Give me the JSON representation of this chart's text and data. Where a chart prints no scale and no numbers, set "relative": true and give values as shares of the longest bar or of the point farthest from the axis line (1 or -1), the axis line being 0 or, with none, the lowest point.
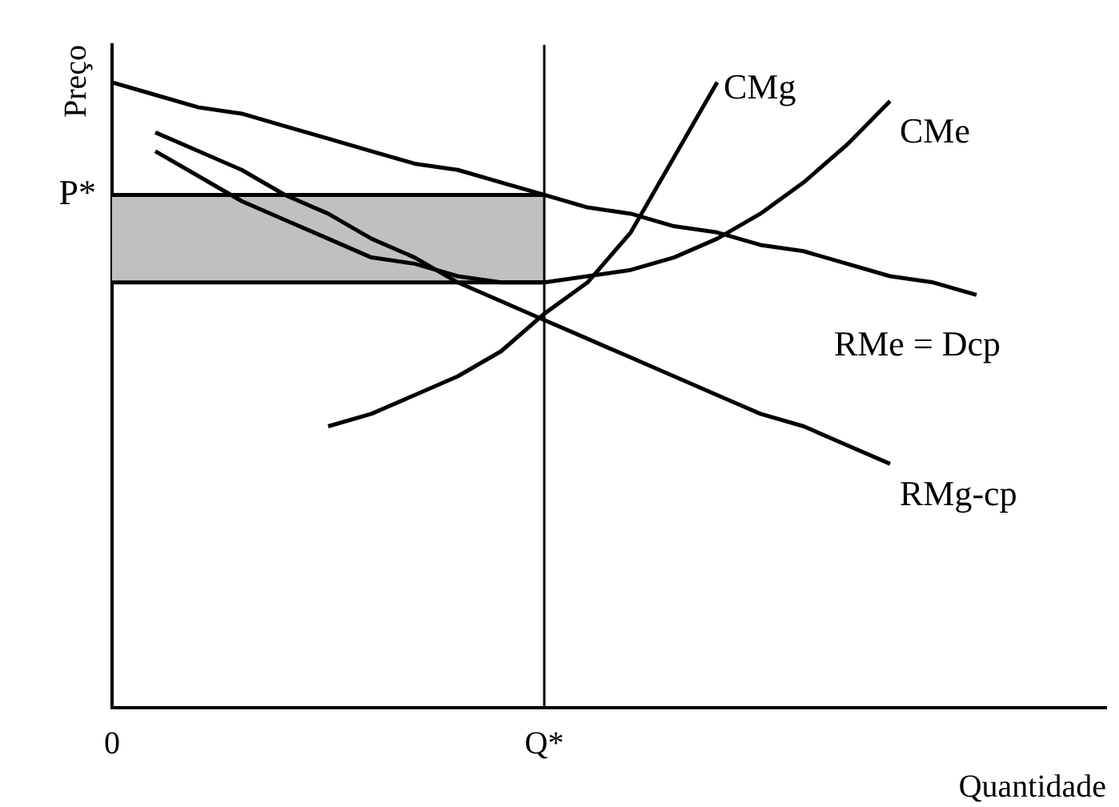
{
  "chart_data": {
    "type": "line",
    "xlabel": "Quantidade",
    "ylabel": "Preço",
    "relative": true,
    "tick_labels": "x",
    "legend": false,
    "marker": "none",
    "line_style": "solid",
    "categories": [
      "0",
      null,
      null,
      null,
      null,
      null,
      null,
      null,
      null,
      null,
      "Q*",
      null,
      null,
      null,
      null,
      null,
      null,
      null,
      null,
      null,
      null,
      null,
      null,
      null
    ],
    "annotations": [
      "P*"
    ],
    "ref_lines": [
      {
        "axis": "x",
        "value": "Q*",
        "color": "#000000"
      }
    ],
    "series": [
      {
        "type": "area",
        "color": "#c0c0c0",
        "values": [
          0.82,
          0.82,
          0.82,
          0.82,
          0.82,
          0.82,
          0.82,
          0.82,
          0.82,
          0.82,
          0.82,
          null,
          null,
          null,
          null,
          null,
          null,
          null,
          null,
          null,
          null,
          null,
          null,
          null
        ]
      },
      {
        "type": "line",
        "color": "#000000",
        "values": [
          0.68,
          0.68,
          0.68,
          0.68,
          0.68,
          0.68,
          0.68,
          0.68,
          0.68,
          0.68,
          0.68,
          null,
          null,
          null,
          null,
          null,
          null,
          null,
          null,
          null,
          null,
          null,
          null,
          null
        ]
      },
      {
        "name": "RMe = Dcp",
        "color": "#000000",
        "values": [
          1,
          0.98,
          0.96,
          0.95,
          0.93,
          0.91,
          0.89,
          0.87,
          0.86,
          0.84,
          0.82,
          0.8,
          0.79,
          0.77,
          0.76,
          0.74,
          0.73,
          0.71,
          0.69,
          0.68,
          0.66,
          null,
          null,
          null
        ]
      },
      {
        "name": "RMg-cp",
        "color": "#000000",
        "values": [
          null,
          0.92,
          0.89,
          0.86,
          0.82,
          0.79,
          0.75,
          0.72,
          0.68,
          0.65,
          0.62,
          0.59,
          0.56,
          0.53,
          0.5,
          0.47,
          0.45,
          0.42,
          0.39,
          null,
          null,
          null,
          null,
          null
        ]
      },
      {
        "name": "CMe",
        "color": "#000000",
        "values": [
          null,
          0.89,
          0.85,
          0.81,
          0.78,
          0.75,
          0.72,
          0.71,
          0.69,
          0.68,
          0.68,
          0.69,
          0.7,
          0.72,
          0.75,
          0.79,
          0.84,
          0.9,
          0.97,
          null,
          null,
          null,
          null,
          null
        ]
      },
      {
        "name": "CMg",
        "color": "#000000",
        "values": [
          null,
          null,
          null,
          null,
          null,
          0.45,
          0.47,
          0.5,
          0.53,
          0.57,
          0.63,
          0.68,
          0.76,
          0.88,
          1,
          null,
          null,
          null,
          null,
          null,
          null,
          null,
          null,
          null
        ]
      }
    ]
  }
}
